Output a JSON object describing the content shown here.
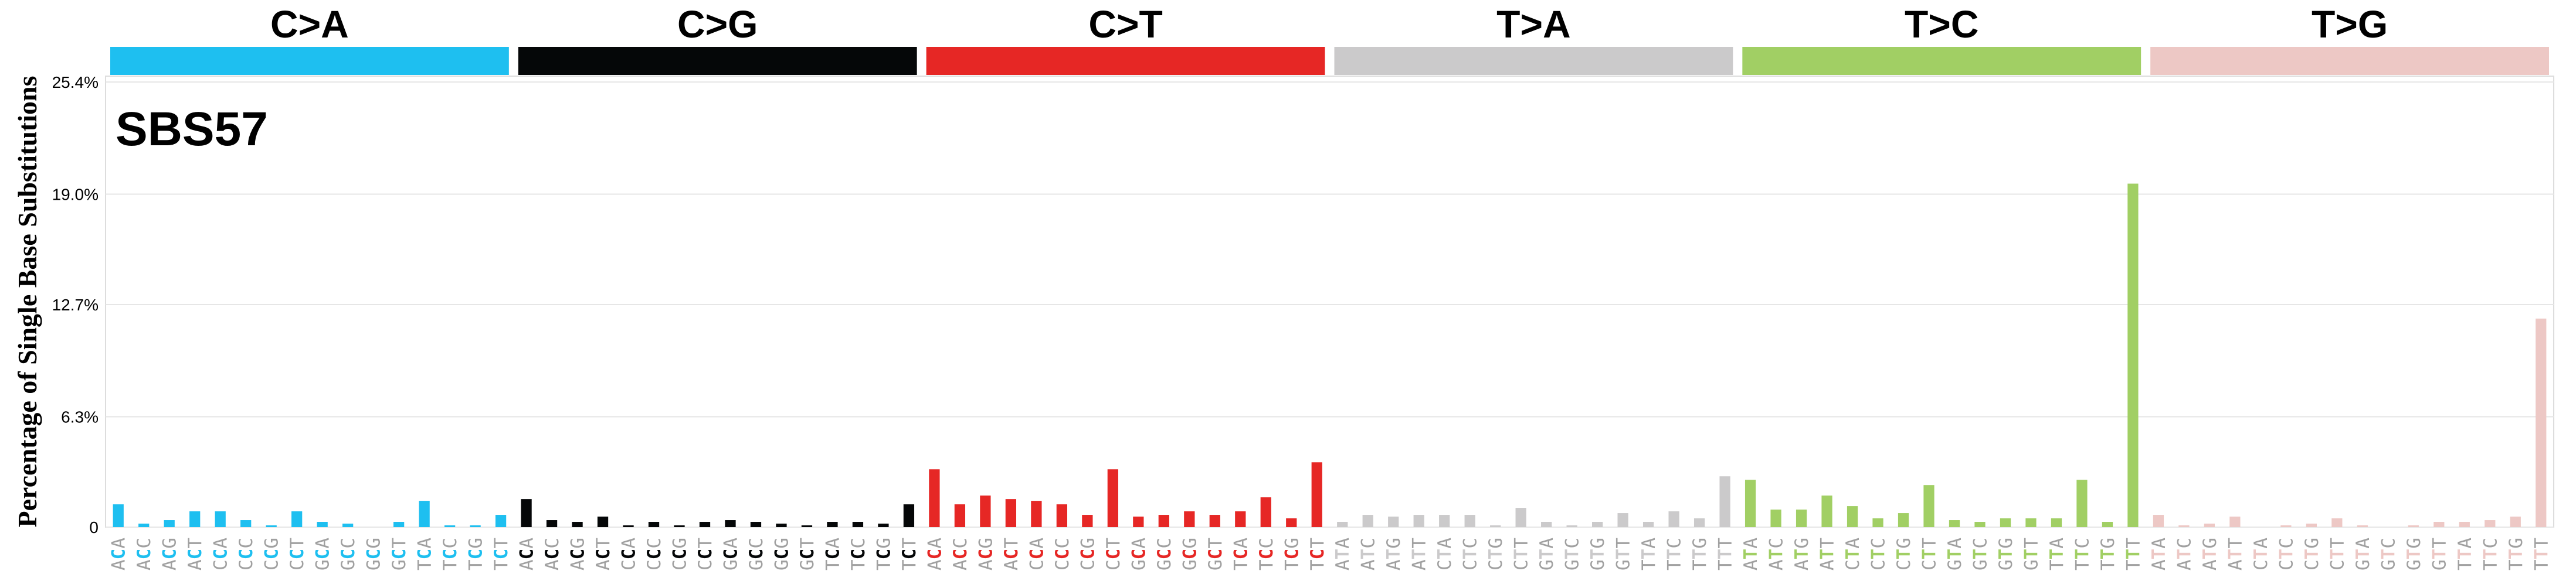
{
  "chart_data": {
    "type": "bar",
    "title": "SBS57",
    "ylabel": "Percentage of Single Base Substitutions",
    "ylim": [
      0,
      25.4
    ],
    "yticks": [
      "0",
      "6.3%",
      "12.7%",
      "19.0%",
      "25.4%"
    ],
    "ytick_values": [
      0,
      6.3,
      12.7,
      19.0,
      25.4
    ],
    "grid": true,
    "colors": {
      "C>A": "#1ebff0",
      "C>G": "#050708",
      "C>T": "#e62725",
      "T>A": "#cbcacb",
      "T>C": "#a1cf64",
      "T>G": "#edc8c5",
      "context_grey": "#a0a0a0"
    },
    "groups": [
      {
        "name": "C>A",
        "categories": [
          "ACA",
          "ACC",
          "ACG",
          "ACT",
          "CCA",
          "CCC",
          "CCG",
          "CCT",
          "GCA",
          "GCC",
          "GCG",
          "GCT",
          "TCA",
          "TCC",
          "TCG",
          "TCT"
        ],
        "values": [
          1.3,
          0.2,
          0.4,
          0.9,
          0.9,
          0.4,
          0.1,
          0.9,
          0.3,
          0.2,
          0.0,
          0.3,
          1.5,
          0.1,
          0.1,
          0.7
        ]
      },
      {
        "name": "C>G",
        "categories": [
          "ACA",
          "ACC",
          "ACG",
          "ACT",
          "CCA",
          "CCC",
          "CCG",
          "CCT",
          "GCA",
          "GCC",
          "GCG",
          "GCT",
          "TCA",
          "TCC",
          "TCG",
          "TCT"
        ],
        "values": [
          1.6,
          0.4,
          0.3,
          0.6,
          0.1,
          0.3,
          0.1,
          0.3,
          0.4,
          0.3,
          0.2,
          0.1,
          0.3,
          0.3,
          0.2,
          1.3
        ]
      },
      {
        "name": "C>T",
        "categories": [
          "ACA",
          "ACC",
          "ACG",
          "ACT",
          "CCA",
          "CCC",
          "CCG",
          "CCT",
          "GCA",
          "GCC",
          "GCG",
          "GCT",
          "TCA",
          "TCC",
          "TCG",
          "TCT"
        ],
        "values": [
          3.3,
          1.3,
          1.8,
          1.6,
          1.5,
          1.3,
          0.7,
          3.3,
          0.6,
          0.7,
          0.9,
          0.7,
          0.9,
          1.7,
          0.5,
          3.7
        ]
      },
      {
        "name": "T>A",
        "categories": [
          "ATA",
          "ATC",
          "ATG",
          "ATT",
          "CTA",
          "CTC",
          "CTG",
          "CTT",
          "GTA",
          "GTC",
          "GTG",
          "GTT",
          "TTA",
          "TTC",
          "TTG",
          "TTT"
        ],
        "values": [
          0.3,
          0.7,
          0.6,
          0.7,
          0.7,
          0.7,
          0.1,
          1.1,
          0.3,
          0.1,
          0.3,
          0.8,
          0.3,
          0.9,
          0.5,
          2.9
        ]
      },
      {
        "name": "T>C",
        "categories": [
          "ATA",
          "ATC",
          "ATG",
          "ATT",
          "CTA",
          "CTC",
          "CTG",
          "CTT",
          "GTA",
          "GTC",
          "GTG",
          "GTT",
          "TTA",
          "TTC",
          "TTG",
          "TTT"
        ],
        "values": [
          2.7,
          1.0,
          1.0,
          1.8,
          1.2,
          0.5,
          0.8,
          2.4,
          0.4,
          0.3,
          0.5,
          0.5,
          0.5,
          2.7,
          0.3,
          19.6
        ]
      },
      {
        "name": "T>G",
        "categories": [
          "ATA",
          "ATC",
          "ATG",
          "ATT",
          "CTA",
          "CTC",
          "CTG",
          "CTT",
          "GTA",
          "GTC",
          "GTG",
          "GTT",
          "TTA",
          "TTC",
          "TTG",
          "TTT"
        ],
        "values": [
          0.7,
          0.1,
          0.2,
          0.6,
          0.0,
          0.1,
          0.2,
          0.5,
          0.1,
          0.0,
          0.1,
          0.3,
          0.3,
          0.4,
          0.6,
          11.9
        ]
      }
    ]
  }
}
